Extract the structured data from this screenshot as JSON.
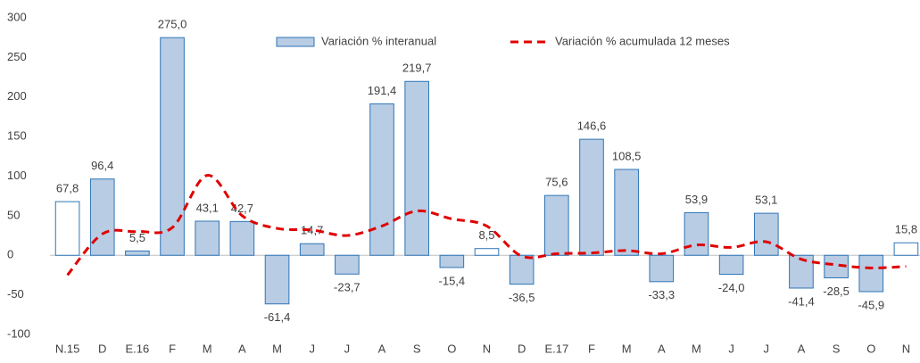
{
  "chart_data": {
    "type": "bar_line",
    "categories": [
      "N.15",
      "D",
      "E.16",
      "F",
      "M",
      "A",
      "M",
      "J",
      "J",
      "A",
      "S",
      "O",
      "N",
      "D",
      "E.17",
      "F",
      "M",
      "A",
      "M",
      "J",
      "J",
      "A",
      "S",
      "O",
      "N"
    ],
    "series": [
      {
        "name": "Variación % interanual",
        "type": "bar",
        "color": "#b8cce4",
        "edge_color": "#2e75b6",
        "colors": [
          "#ffffff",
          "#b8cce4",
          "#b8cce4",
          "#b8cce4",
          "#b8cce4",
          "#b8cce4",
          "#b8cce4",
          "#b8cce4",
          "#b8cce4",
          "#b8cce4",
          "#b8cce4",
          "#b8cce4",
          "#ffffff",
          "#b8cce4",
          "#b8cce4",
          "#b8cce4",
          "#b8cce4",
          "#b8cce4",
          "#b8cce4",
          "#b8cce4",
          "#b8cce4",
          "#b8cce4",
          "#b8cce4",
          "#b8cce4",
          "#ffffff"
        ],
        "values": [
          67.8,
          96.4,
          5.5,
          275.0,
          43.1,
          42.7,
          -61.4,
          14.7,
          -23.7,
          191.4,
          219.7,
          -15.4,
          8.5,
          -36.5,
          75.6,
          146.6,
          108.5,
          -33.3,
          53.9,
          -24.0,
          53.1,
          -41.4,
          -28.5,
          -45.9,
          15.8
        ],
        "value_labels": [
          "67,8",
          "96,4",
          "5,5",
          "275,0",
          "43,1",
          "42,7",
          "-61,4",
          "14,7",
          "-23,7",
          "191,4",
          "219,7",
          "-15,4",
          "8,5",
          "-36,5",
          "75,6",
          "146,6",
          "108,5",
          "-33,3",
          "53,9",
          "-24,0",
          "53,1",
          "-41,4",
          "-28,5",
          "-45,9",
          "15,8"
        ]
      },
      {
        "name": "Variación % acumulada 12 meses",
        "type": "line",
        "color": "#e00000",
        "dashed": true,
        "values": [
          -25,
          27,
          30,
          35,
          101,
          50,
          34,
          32,
          25,
          37,
          56,
          46,
          37,
          -1,
          2,
          3,
          6,
          2,
          13,
          10,
          17,
          -5,
          -12,
          -16,
          -14
        ]
      }
    ],
    "ylim": [
      -100,
      300
    ],
    "yticks": [
      -100,
      -50,
      0,
      50,
      100,
      150,
      200,
      250,
      300
    ],
    "grid": false,
    "legend": "top"
  }
}
